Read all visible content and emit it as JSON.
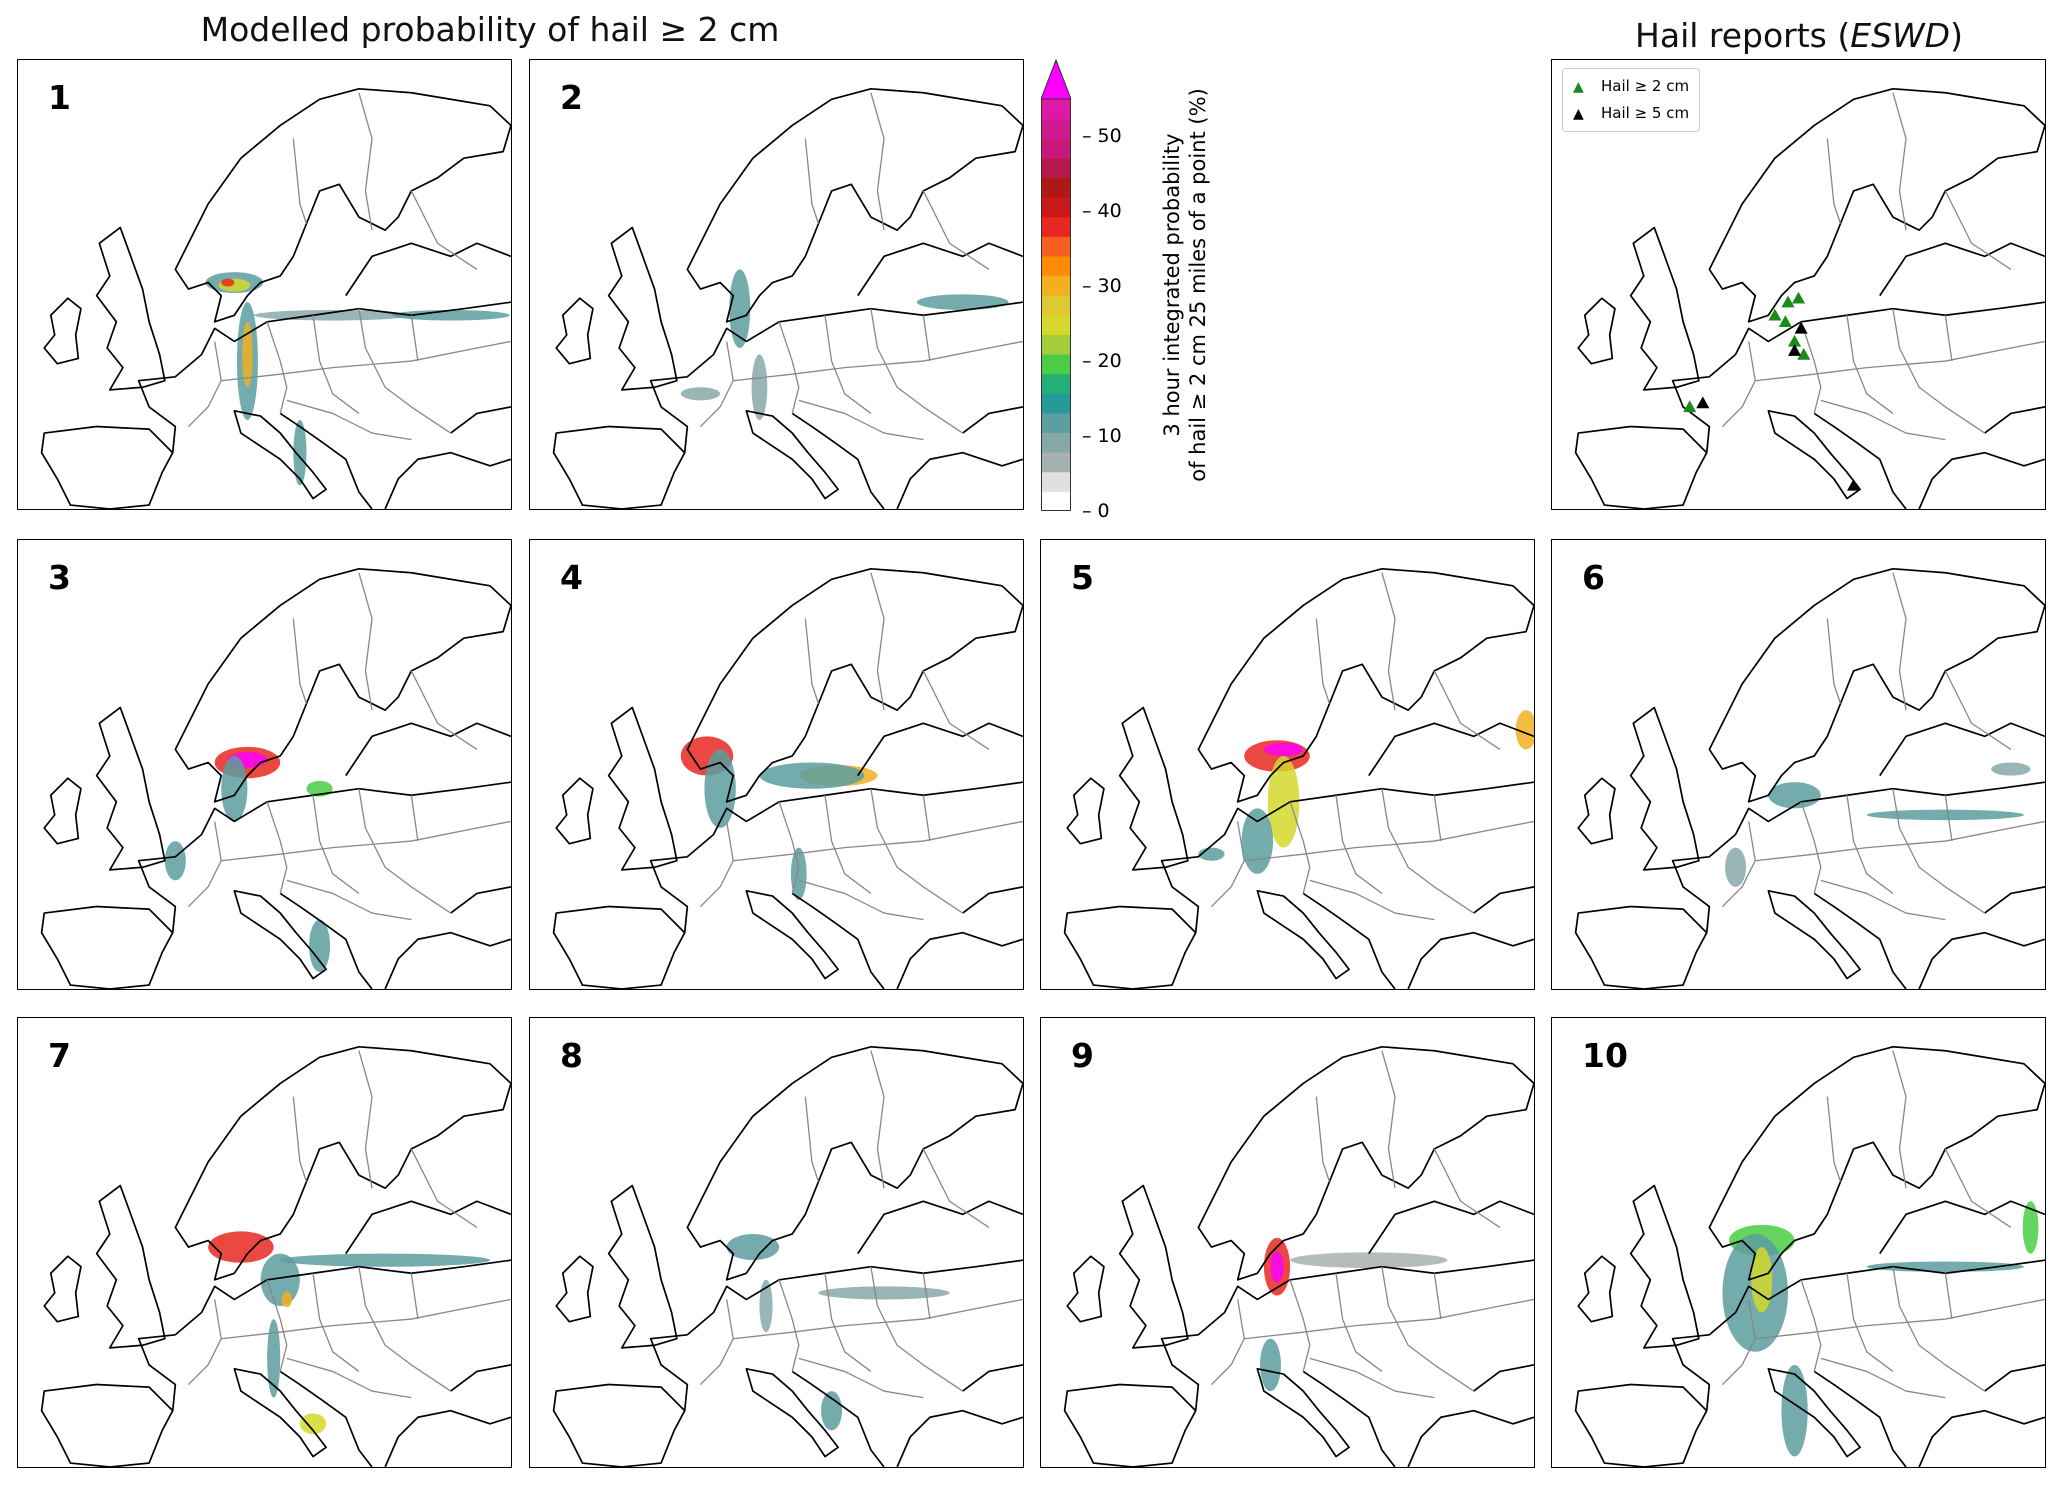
{
  "titles": {
    "left": "Modelled probability of hail ≥ 2 cm",
    "right_prefix": "Hail reports (",
    "right_italic": "ESWD",
    "right_suffix": ")"
  },
  "panels": [
    "1",
    "2",
    "3",
    "4",
    "5",
    "6",
    "7",
    "8",
    "9",
    "10"
  ],
  "colorbar": {
    "label_line1": "3 hour integrated probability",
    "label_line2": "of hail ≥ 2 cm 25 miles of a point (%)",
    "ticks": [
      "0",
      "10",
      "20",
      "30",
      "40",
      "50"
    ],
    "range": [
      0,
      55
    ],
    "extend": "max",
    "colors": [
      "#ffffff",
      "#e0e0e0",
      "#a8b0b0",
      "#88a8a8",
      "#5c9ea0",
      "#259a98",
      "#23b07a",
      "#4acc44",
      "#a4cc3c",
      "#d4d82c",
      "#e0c830",
      "#f0b020",
      "#ff8c00",
      "#f86020",
      "#e82820",
      "#c81818",
      "#b01818",
      "#b81850",
      "#c81878",
      "#d01890",
      "#e018a8",
      "#ff00ff"
    ]
  },
  "legend": {
    "items": [
      {
        "label": "Hail ≥ 2 cm",
        "color": "#1a8a1a"
      },
      {
        "label": "Hail ≥ 5 cm",
        "color": "#000000"
      }
    ]
  }
}
